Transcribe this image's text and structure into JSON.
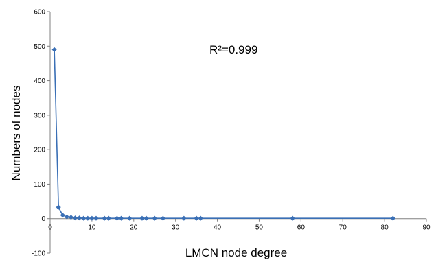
{
  "chart_data": {
    "type": "line",
    "title": "",
    "xlabel": "LMCN node degree",
    "ylabel": "Numbers of nodes",
    "xlim": [
      0,
      90
    ],
    "ylim": [
      -100,
      600
    ],
    "x_ticks": [
      0,
      10,
      20,
      30,
      40,
      50,
      60,
      70,
      80,
      90
    ],
    "y_ticks": [
      -100,
      0,
      100,
      200,
      300,
      400,
      500,
      600
    ],
    "grid": false,
    "legend": "none",
    "annotation": "R²=0.999",
    "series": [
      {
        "color": "#3a6fb5",
        "marker": "diamond",
        "points": [
          {
            "x": 1,
            "y": 490
          },
          {
            "x": 2,
            "y": 33
          },
          {
            "x": 3,
            "y": 10
          },
          {
            "x": 4,
            "y": 5
          },
          {
            "x": 5,
            "y": 4
          },
          {
            "x": 6,
            "y": 2
          },
          {
            "x": 7,
            "y": 2
          },
          {
            "x": 8,
            "y": 1
          },
          {
            "x": 9,
            "y": 1
          },
          {
            "x": 10,
            "y": 1
          },
          {
            "x": 11,
            "y": 1
          },
          {
            "x": 13,
            "y": 1
          },
          {
            "x": 14,
            "y": 1
          },
          {
            "x": 16,
            "y": 1
          },
          {
            "x": 17,
            "y": 1
          },
          {
            "x": 19,
            "y": 1
          },
          {
            "x": 22,
            "y": 1
          },
          {
            "x": 23,
            "y": 1
          },
          {
            "x": 25,
            "y": 1
          },
          {
            "x": 27,
            "y": 1
          },
          {
            "x": 32,
            "y": 1
          },
          {
            "x": 35,
            "y": 1
          },
          {
            "x": 36,
            "y": 1
          },
          {
            "x": 58,
            "y": 1
          },
          {
            "x": 82,
            "y": 1
          }
        ]
      }
    ]
  }
}
